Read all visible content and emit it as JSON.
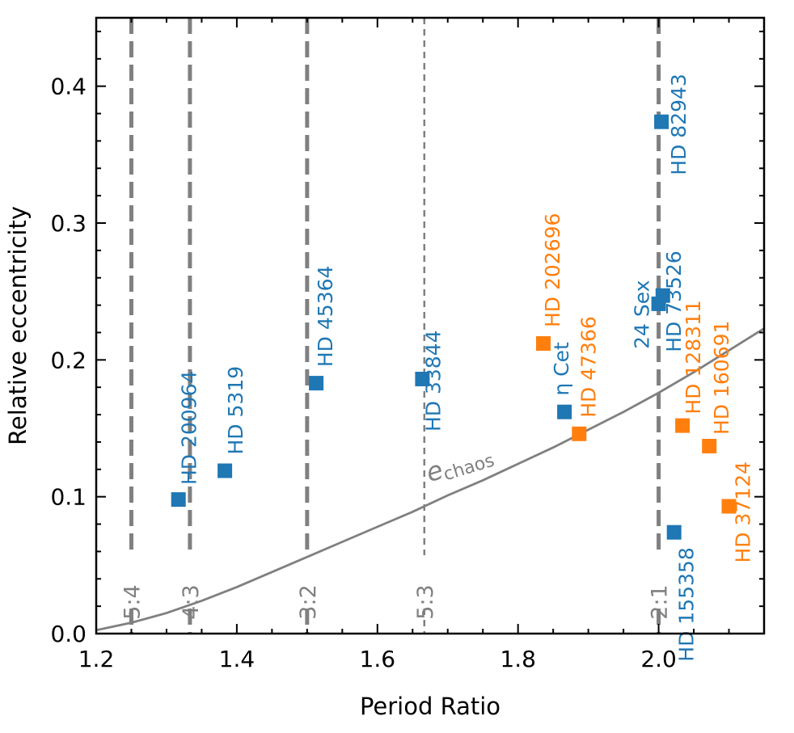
{
  "chart_data": {
    "type": "scatter",
    "xlabel": "Period Ratio",
    "ylabel": "Relative eccentricity",
    "xlim": [
      1.2,
      2.15
    ],
    "ylim": [
      0.0,
      0.45
    ],
    "x_ticks": [
      1.2,
      1.4,
      1.6,
      1.8,
      2.0
    ],
    "x_tick_labels": [
      "1.2",
      "1.4",
      "1.6",
      "1.8",
      "2.0"
    ],
    "y_ticks": [
      0.0,
      0.1,
      0.2,
      0.3,
      0.4
    ],
    "y_tick_labels": [
      "0.0",
      "0.1",
      "0.2",
      "0.3",
      "0.4"
    ],
    "resonances": [
      {
        "label": "5:4",
        "x": 1.25,
        "style": "dashed"
      },
      {
        "label": "4:3",
        "x": 1.3333,
        "style": "dashed"
      },
      {
        "label": "3:2",
        "x": 1.5,
        "style": "dashed"
      },
      {
        "label": "5:3",
        "x": 1.6667,
        "style": "thin-dashed"
      },
      {
        "label": "2:1",
        "x": 2.0,
        "style": "dashed"
      }
    ],
    "curve": {
      "label_base": "e",
      "label_sub": "chaos",
      "x": [
        1.2,
        1.25,
        1.3,
        1.35,
        1.4,
        1.45,
        1.5,
        1.55,
        1.6,
        1.65,
        1.7,
        1.75,
        1.8,
        1.85,
        1.9,
        1.95,
        2.0,
        2.05,
        2.1,
        2.15
      ],
      "y": [
        0.0025,
        0.008,
        0.015,
        0.024,
        0.034,
        0.045,
        0.056,
        0.067,
        0.078,
        0.089,
        0.101,
        0.112,
        0.124,
        0.136,
        0.149,
        0.162,
        0.176,
        0.191,
        0.207,
        0.223
      ]
    },
    "series": [
      {
        "name": "blue",
        "color": "#1f77b4",
        "points": [
          {
            "label": "HD 200964",
            "x": 1.317,
            "y": 0.098
          },
          {
            "label": "HD 5319",
            "x": 1.383,
            "y": 0.119
          },
          {
            "label": "HD 45364",
            "x": 1.513,
            "y": 0.183
          },
          {
            "label": "HD 33844",
            "x": 1.664,
            "y": 0.186
          },
          {
            "label": "η Cet",
            "x": 1.866,
            "y": 0.162
          },
          {
            "label": "24 Sex",
            "x": 2.0,
            "y": 0.241
          },
          {
            "label": "HD 73526",
            "x": 2.006,
            "y": 0.247
          },
          {
            "label": "HD 82943",
            "x": 2.004,
            "y": 0.374
          },
          {
            "label": "HD 155358",
            "x": 2.022,
            "y": 0.074
          }
        ]
      },
      {
        "name": "orange",
        "color": "#ff7f0e",
        "points": [
          {
            "label": "HD 202696",
            "x": 1.836,
            "y": 0.212
          },
          {
            "label": "HD 47366",
            "x": 1.887,
            "y": 0.146
          },
          {
            "label": "HD 128311",
            "x": 2.034,
            "y": 0.152
          },
          {
            "label": "HD 160691",
            "x": 2.072,
            "y": 0.137
          },
          {
            "label": "HD 37124",
            "x": 2.1,
            "y": 0.093
          }
        ]
      }
    ]
  }
}
